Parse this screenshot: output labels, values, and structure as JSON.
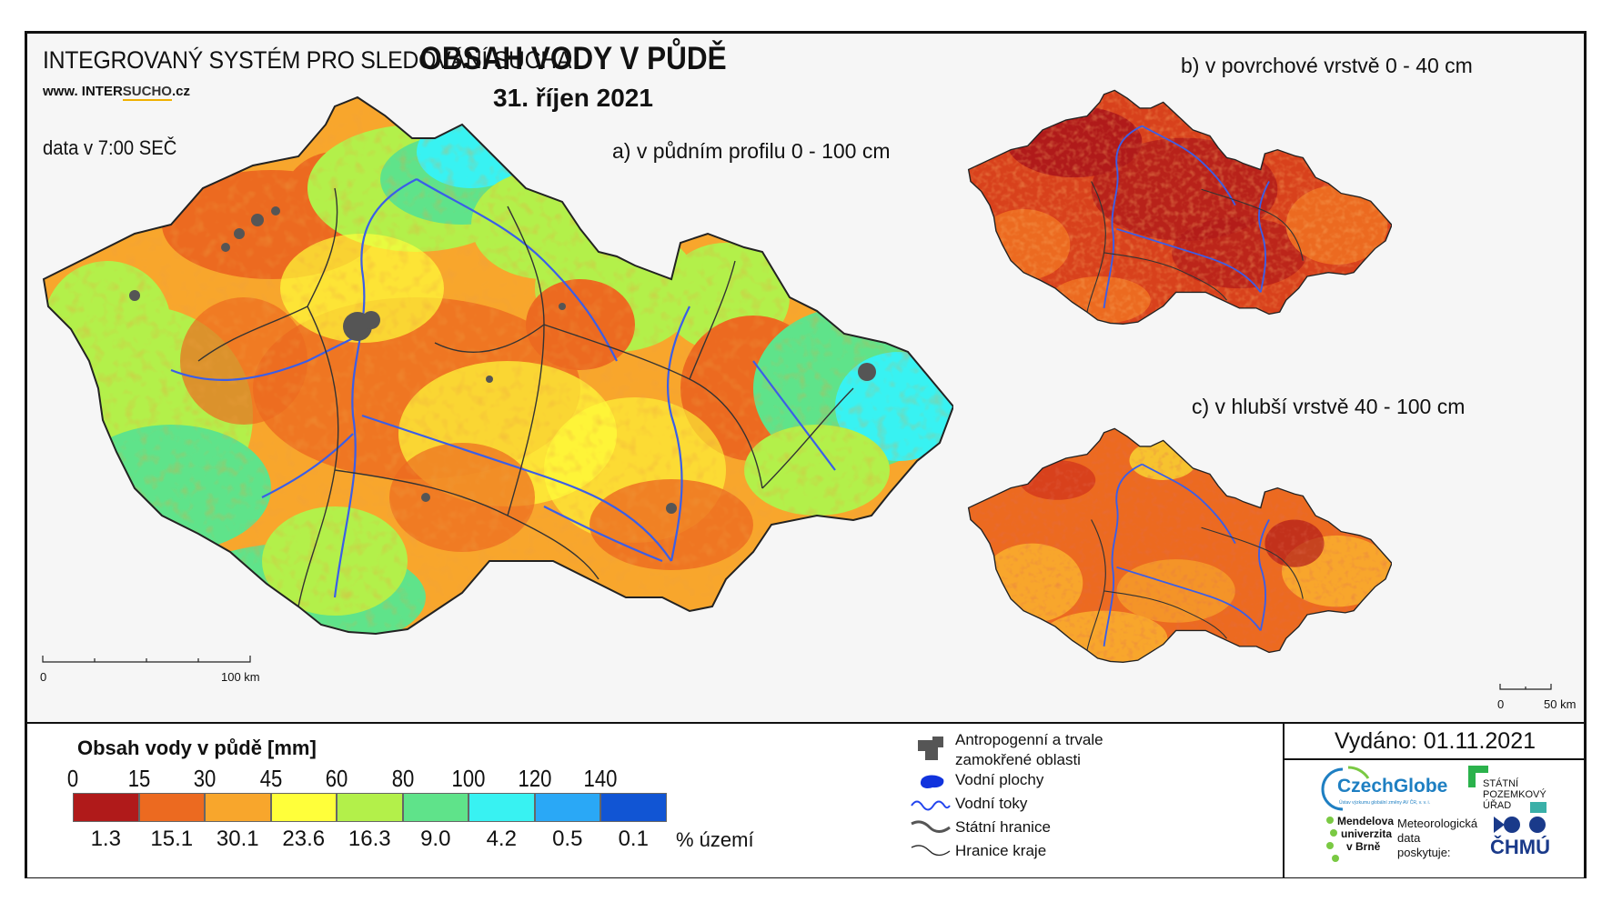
{
  "header": {
    "system": "INTEGROVANÝ SYSTÉM PRO SLEDOVÁNÍ SUCHA",
    "web_prefix": "www. INTER",
    "web_highlight": "SUCHO",
    "web_suffix": ".cz",
    "data_time": "data v 7:00 SEČ",
    "title": "OBSAH VODY V PŮDĚ",
    "date": "31. říjen 2021"
  },
  "maps": {
    "a_label": "a) v půdním profilu 0 - 100 cm",
    "b_label": "b) v povrchové vrstvě 0 - 40 cm",
    "c_label": "c) v hlubší vrstvě 40 - 100 cm",
    "scale_main_zero": "0",
    "scale_main_end": "100 km",
    "scale_small_zero": "0",
    "scale_small_end": "50 km"
  },
  "legend": {
    "title": "Obsah vody v půdě  [mm]",
    "ticks": [
      "0",
      "15",
      "30",
      "45",
      "60",
      "80",
      "100",
      "120",
      "140"
    ],
    "classes": [
      {
        "color": "#b01a1a",
        "pct": "1.3"
      },
      {
        "color": "#ec6a20",
        "pct": "15.1"
      },
      {
        "color": "#f8a62c",
        "pct": "30.1"
      },
      {
        "color": "#ffff3a",
        "pct": "23.6"
      },
      {
        "color": "#b3f04a",
        "pct": "16.3"
      },
      {
        "color": "#5fe38a",
        "pct": "9.0"
      },
      {
        "color": "#38f2f2",
        "pct": "4.2"
      },
      {
        "color": "#2aa8f6",
        "pct": "0.5"
      },
      {
        "color": "#1155d4",
        "pct": "0.1"
      }
    ],
    "pct_unit": "% území"
  },
  "symbols": {
    "anthropogenic_1": "Antropogenní a trvale",
    "anthropogenic_2": "zamokřené oblasti",
    "water_bodies": "Vodní plochy",
    "rivers": "Vodní toky",
    "state_border": "Státní hranice",
    "region_border": "Hranice kraje"
  },
  "issued": "Vydáno: 01.11.2021",
  "logos": {
    "czechglobe": "CzechGlobe",
    "czechglobe_sub": "Ústav výzkumu globální změny AV ČR, v. v. i.",
    "spu_1": "STÁTNÍ",
    "spu_2": "POZEMKOVÝ",
    "spu_3": "ÚŘAD",
    "mendel_1": "Mendelova",
    "mendel_2": "univerzita",
    "mendel_3": "v Brně",
    "met_1": "Meteorologická",
    "met_2": "data",
    "met_3": "poskytuje:",
    "chmu": "ČHMÚ"
  }
}
